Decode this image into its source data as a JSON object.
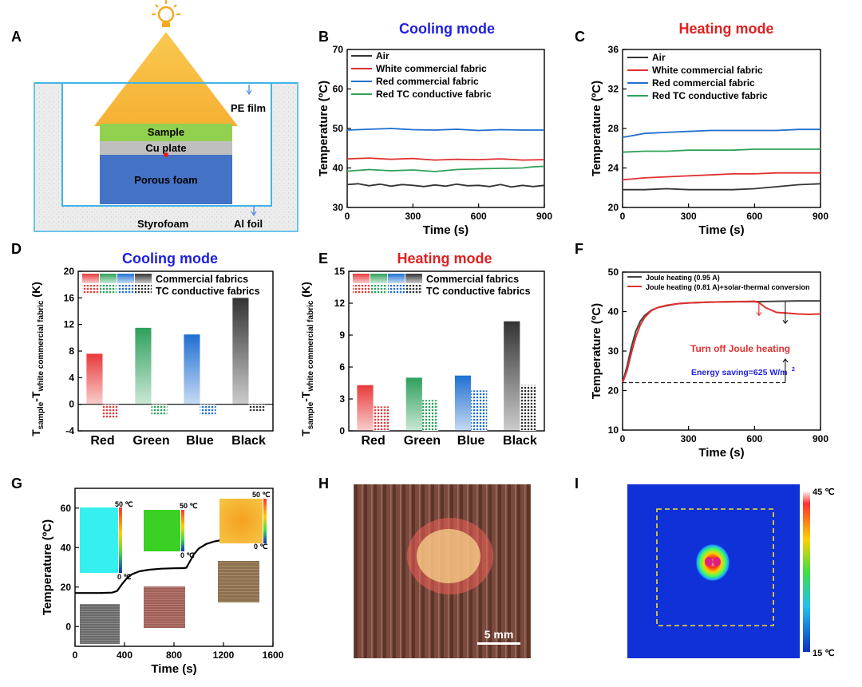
{
  "panel_letters": [
    "A",
    "B",
    "C",
    "D",
    "E",
    "F",
    "G",
    "H",
    "I"
  ],
  "panel_a": {
    "sample": "Sample",
    "cu_plate": "Cu plate",
    "porous_foam": "Porous foam",
    "pe_film": "PE film",
    "styrofoam": "Styrofoam",
    "al_foil": "Al foil",
    "colors": {
      "sample": "#92d050",
      "cu": "#bfbfbf",
      "foam": "#4472c4",
      "beam": "#f7b71d",
      "frame": "#3fb4e6"
    }
  },
  "panel_h": {
    "scale_bar": "5 mm"
  },
  "panel_i": {
    "cb_top": "45 ℃",
    "cb_bottom": "15 ℃"
  },
  "chart_data": [
    {
      "id": "B",
      "type": "line",
      "title": "Cooling mode",
      "title_color": "#2020e0",
      "xlabel": "Time (s)",
      "ylabel": "Temperature (ºC)",
      "xlim": [
        0,
        900
      ],
      "ylim": [
        30,
        70
      ],
      "xticks": [
        0,
        300,
        600,
        900
      ],
      "yticks": [
        30,
        40,
        50,
        60,
        70
      ],
      "legend_position": "top-left",
      "grid": false,
      "series": [
        {
          "name": "Air",
          "color": "#333333",
          "x": [
            0,
            50,
            100,
            150,
            200,
            250,
            300,
            350,
            400,
            450,
            500,
            550,
            600,
            650,
            700,
            750,
            800,
            850,
            900
          ],
          "y": [
            35.8,
            36.0,
            35.5,
            35.9,
            35.4,
            35.8,
            35.6,
            35.3,
            35.7,
            35.4,
            35.9,
            35.5,
            35.6,
            35.3,
            35.8,
            35.2,
            35.6,
            35.3,
            35.6
          ]
        },
        {
          "name": "White commercial fabric",
          "color": "#e03030",
          "x": [
            0,
            100,
            200,
            300,
            400,
            500,
            600,
            700,
            800,
            900
          ],
          "y": [
            42.3,
            42.5,
            42.2,
            42.4,
            42.0,
            42.2,
            42.1,
            42.3,
            42.0,
            42.1
          ]
        },
        {
          "name": "Red commercial fabric",
          "color": "#1f6fd1",
          "x": [
            0,
            100,
            200,
            300,
            400,
            500,
            600,
            700,
            800,
            900
          ],
          "y": [
            49.6,
            49.8,
            50.0,
            49.7,
            49.6,
            49.8,
            49.5,
            49.7,
            49.6,
            49.6
          ]
        },
        {
          "name": "Red TC conductive fabric",
          "color": "#2ea05a",
          "x": [
            0,
            100,
            200,
            300,
            400,
            500,
            600,
            700,
            800,
            850,
            900
          ],
          "y": [
            39.2,
            39.6,
            39.3,
            39.5,
            39.1,
            39.6,
            39.8,
            39.9,
            40.0,
            40.3,
            40.4
          ]
        }
      ]
    },
    {
      "id": "C",
      "type": "line",
      "title": "Heating mode",
      "title_color": "#e02020",
      "xlabel": "Time (s)",
      "ylabel": "Temperature (ºC)",
      "xlim": [
        0,
        900
      ],
      "ylim": [
        20,
        36
      ],
      "xticks": [
        0,
        300,
        600,
        900
      ],
      "yticks": [
        20,
        24,
        28,
        32,
        36
      ],
      "legend_position": "top-left",
      "grid": false,
      "series": [
        {
          "name": "Air",
          "color": "#333333",
          "x": [
            0,
            100,
            200,
            300,
            400,
            500,
            600,
            700,
            800,
            900
          ],
          "y": [
            21.8,
            21.8,
            21.9,
            21.8,
            21.8,
            21.8,
            21.9,
            22.1,
            22.3,
            22.4
          ]
        },
        {
          "name": "White commercial fabric",
          "color": "#e03030",
          "x": [
            0,
            50,
            100,
            200,
            300,
            400,
            500,
            600,
            700,
            800,
            900
          ],
          "y": [
            22.8,
            22.9,
            23.0,
            23.1,
            23.2,
            23.3,
            23.4,
            23.4,
            23.5,
            23.5,
            23.5
          ]
        },
        {
          "name": "Red commercial fabric",
          "color": "#1f6fd1",
          "x": [
            0,
            50,
            100,
            200,
            300,
            400,
            500,
            600,
            700,
            800,
            900
          ],
          "y": [
            27.1,
            27.3,
            27.5,
            27.6,
            27.7,
            27.8,
            27.8,
            27.8,
            27.8,
            27.9,
            27.9
          ]
        },
        {
          "name": "Red TC conductive fabric",
          "color": "#2ea05a",
          "x": [
            0,
            100,
            200,
            300,
            400,
            500,
            600,
            700,
            800,
            900
          ],
          "y": [
            25.6,
            25.7,
            25.7,
            25.8,
            25.8,
            25.8,
            25.9,
            25.9,
            25.9,
            25.9
          ]
        }
      ]
    },
    {
      "id": "D",
      "type": "bar",
      "title": "Cooling mode",
      "title_color": "#2020e0",
      "xlabel": "",
      "ylabel": "T_sample-T_white commercial fabric (K)",
      "ylabel_main": "T",
      "ylabel_sub1": "sample",
      "ylabel_mid": "-T",
      "ylabel_sub2": "white commercial fabric",
      "ylabel_tail": " (K)",
      "categories": [
        "Red",
        "Green",
        "Blue",
        "Black"
      ],
      "ylim": [
        -4,
        20
      ],
      "yticks": [
        -4,
        0,
        4,
        8,
        12,
        16,
        20
      ],
      "legend": [
        "Commercial fabrics",
        "TC conductive fabrics"
      ],
      "category_colors": [
        "#e83a3a",
        "#2ea05a",
        "#1f6fd1",
        "#333333"
      ],
      "series": [
        {
          "name": "Commercial fabrics",
          "values": [
            7.6,
            11.5,
            10.5,
            16.0
          ]
        },
        {
          "name": "TC conductive fabrics",
          "values": [
            -2.2,
            -1.6,
            -1.7,
            -1.0
          ]
        }
      ]
    },
    {
      "id": "E",
      "type": "bar",
      "title": "Heating mode",
      "title_color": "#e02020",
      "xlabel": "",
      "ylabel": "T_sample-T_white commercial fabric (K)",
      "ylabel_main": "T",
      "ylabel_sub1": "sample",
      "ylabel_mid": "-T",
      "ylabel_sub2": "white commercial fabric",
      "ylabel_tail": " (K)",
      "categories": [
        "Red",
        "Green",
        "Blue",
        "Black"
      ],
      "ylim": [
        0,
        15
      ],
      "yticks": [
        0,
        3,
        6,
        9,
        12,
        15
      ],
      "legend": [
        "Commercial fabrics",
        "TC conductive fabrics"
      ],
      "category_colors": [
        "#e83a3a",
        "#2ea05a",
        "#1f6fd1",
        "#333333"
      ],
      "series": [
        {
          "name": "Commercial fabrics",
          "values": [
            4.3,
            5.0,
            5.2,
            10.3
          ]
        },
        {
          "name": "TC conductive fabrics",
          "values": [
            2.3,
            2.9,
            3.8,
            4.3
          ]
        }
      ]
    },
    {
      "id": "F",
      "type": "line",
      "title": "",
      "xlabel": "Time (s)",
      "ylabel": "Temperature (ºC)",
      "xlim": [
        0,
        900
      ],
      "ylim": [
        10,
        50
      ],
      "xticks": [
        0,
        300,
        600,
        900
      ],
      "yticks": [
        10,
        20,
        30,
        40,
        50
      ],
      "legend_position": "top-left",
      "grid": false,
      "annotations": [
        "Turn off Joule heating",
        "Energy saving=625 W/m",
        "2"
      ],
      "annotation_colors": [
        "#e03030",
        "#2020e0"
      ],
      "series": [
        {
          "name": "Joule heating (0.95 A)",
          "color": "#444444",
          "x": [
            0,
            20,
            40,
            60,
            80,
            100,
            130,
            160,
            200,
            250,
            300,
            400,
            500,
            600,
            700,
            800,
            900
          ],
          "y": [
            22,
            26,
            31,
            35,
            37.5,
            39,
            40.3,
            41,
            41.5,
            42,
            42.2,
            42.4,
            42.5,
            42.5,
            42.6,
            42.7,
            42.7
          ]
        },
        {
          "name": "Joule heating (0.81 A)+solar-thermal conversion",
          "color": "#e03030",
          "x": [
            0,
            20,
            40,
            60,
            80,
            100,
            130,
            160,
            200,
            250,
            300,
            400,
            500,
            600,
            620,
            650,
            700,
            750,
            800,
            850,
            900
          ],
          "y": [
            22,
            25,
            29.5,
            33.5,
            36.5,
            38.5,
            40.2,
            41,
            41.6,
            42,
            42.2,
            42.4,
            42.5,
            42.6,
            42.3,
            41,
            39.8,
            39.6,
            39.4,
            39.3,
            39.4
          ]
        }
      ]
    },
    {
      "id": "G",
      "type": "line",
      "title": "",
      "xlabel": "Time (s)",
      "ylabel": "Temperature (ºC)",
      "xlim": [
        0,
        1600
      ],
      "ylim": [
        -10,
        70
      ],
      "xticks": [
        0,
        400,
        800,
        1200,
        1600
      ],
      "yticks": [
        0,
        20,
        40,
        60
      ],
      "insets": {
        "scale_max": "50 ℃",
        "scale_min": "0 ℃"
      },
      "series": [
        {
          "name": "",
          "color": "#000000",
          "x": [
            0,
            100,
            200,
            300,
            340,
            380,
            420,
            460,
            520,
            600,
            700,
            800,
            880,
            900,
            920,
            960,
            1000,
            1060,
            1120,
            1200,
            1300,
            1400,
            1500
          ],
          "y": [
            17,
            17,
            17,
            17.2,
            18,
            21.5,
            24.5,
            26.5,
            28,
            28.8,
            29.3,
            29.5,
            29.6,
            29.8,
            32,
            36.5,
            39.5,
            41.8,
            43,
            44,
            44.4,
            44.6,
            44.7
          ]
        }
      ]
    }
  ]
}
